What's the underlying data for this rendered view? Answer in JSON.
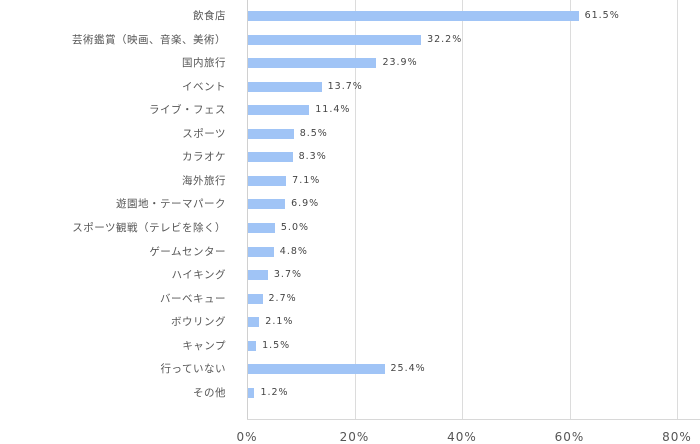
{
  "chart_data": {
    "type": "bar",
    "orientation": "horizontal",
    "title": "",
    "xlabel": "",
    "ylabel": "",
    "xlim": [
      0,
      80
    ],
    "grid": true,
    "legend": null,
    "bar_color": "#a0c4f6",
    "x_ticks": [
      "0%",
      "20%",
      "40%",
      "60%",
      "80%"
    ],
    "categories": [
      "飲食店",
      "芸術鑑賞（映画、音楽、美術）",
      "国内旅行",
      "イベント",
      "ライブ・フェス",
      "スポーツ",
      "カラオケ",
      "海外旅行",
      "遊園地・テーマパーク",
      "スポーツ観戦（テレビを除く）",
      "ゲームセンター",
      "ハイキング",
      "バーベキュー",
      "ボウリング",
      "キャンプ",
      "行っていない",
      "その他"
    ],
    "values": [
      61.5,
      32.2,
      23.9,
      13.7,
      11.4,
      8.5,
      8.3,
      7.1,
      6.9,
      5.0,
      4.8,
      3.7,
      2.7,
      2.1,
      1.5,
      25.4,
      1.2
    ],
    "value_labels": [
      "61.5%",
      "32.2%",
      "23.9%",
      "13.7%",
      "11.4%",
      "8.5%",
      "8.3%",
      "7.1%",
      "6.9%",
      "5.0%",
      "4.8%",
      "3.7%",
      "2.7%",
      "2.1%",
      "1.5%",
      "25.4%",
      "1.2%"
    ]
  }
}
